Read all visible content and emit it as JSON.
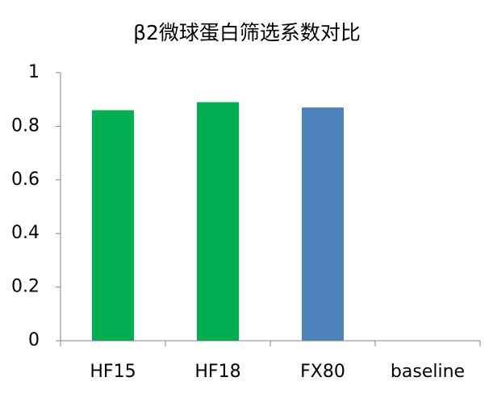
{
  "chart_data": {
    "type": "bar",
    "title": "β2微球蛋白筛选系数对比",
    "categories": [
      "HF15",
      "HF18",
      "FX80",
      "baseline"
    ],
    "values": [
      0.86,
      0.89,
      0.87,
      null
    ],
    "colors": [
      "#00b050",
      "#00b050",
      "#4f81bd",
      null
    ],
    "ylim": [
      0,
      1
    ],
    "yticks": [
      0,
      0.2,
      0.4,
      0.6,
      0.8,
      1
    ],
    "grid": false
  }
}
